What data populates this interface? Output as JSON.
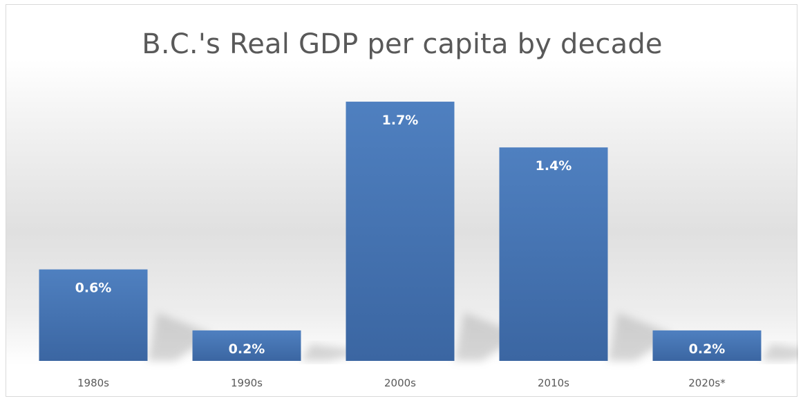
{
  "chart_data": {
    "type": "bar",
    "title": "B.C.'s Real GDP per capita by decade",
    "xlabel": "",
    "ylabel": "",
    "categories": [
      "1980s",
      "1990s",
      "2000s",
      "2010s",
      "2020s*"
    ],
    "values": [
      0.6,
      0.2,
      1.7,
      1.4,
      0.2
    ],
    "data_labels": [
      "0.6%",
      "0.2%",
      "1.7%",
      "1.4%",
      "0.2%"
    ],
    "ylim": [
      0,
      1.8
    ],
    "grid": false,
    "legend": "none",
    "colors": {
      "bar": "#4a7ab9",
      "bar_dark": "#3d67a3",
      "label": "#ffffff",
      "tick": "#595959",
      "title": "#595959"
    }
  }
}
